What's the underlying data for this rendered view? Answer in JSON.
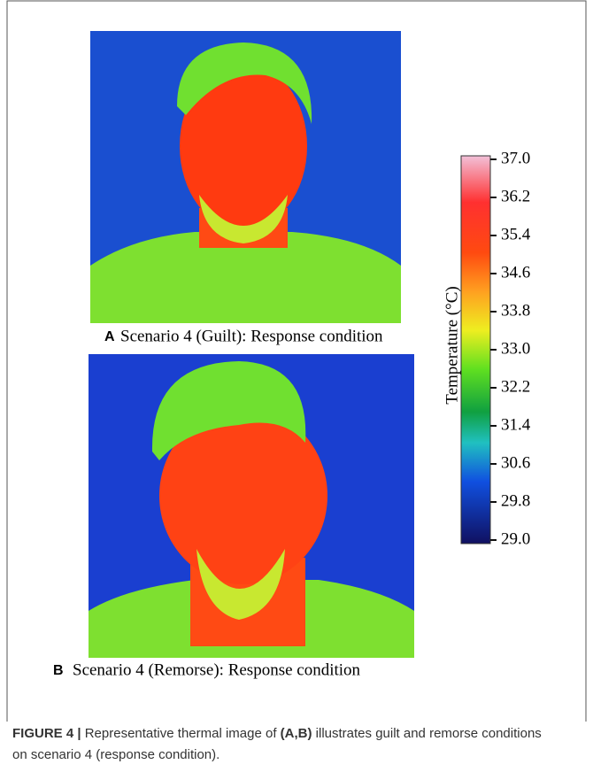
{
  "panels": [
    {
      "letter": "A",
      "label": "Scenario 4 (Guilt): Response  condition"
    },
    {
      "letter": "B",
      "label": "Scenario 4 (Remorse): Response condition"
    }
  ],
  "colorbar": {
    "title": "Temperature (°C)",
    "ticks": [
      {
        "value": 37,
        "label": "37.0"
      },
      {
        "value": 36.2,
        "label": "36.2"
      },
      {
        "value": 35.4,
        "label": "35.4"
      },
      {
        "value": 34.6,
        "label": "34.6"
      },
      {
        "value": 33.8,
        "label": "33.8"
      },
      {
        "value": 33,
        "label": "33.0"
      },
      {
        "value": 32.2,
        "label": "32.2"
      },
      {
        "value": 31.4,
        "label": "31.4"
      },
      {
        "value": 30.6,
        "label": "30.6"
      },
      {
        "value": 29.8,
        "label": "29.8"
      },
      {
        "value": 29,
        "label": "29.0"
      }
    ]
  },
  "caption": {
    "figure": "FIGURE 4 |",
    "text1": "Representative thermal image of ",
    "panels": "(A,B)",
    "text2": " illustrates guilt and remorse conditions on scenario 4 (response condition)."
  }
}
